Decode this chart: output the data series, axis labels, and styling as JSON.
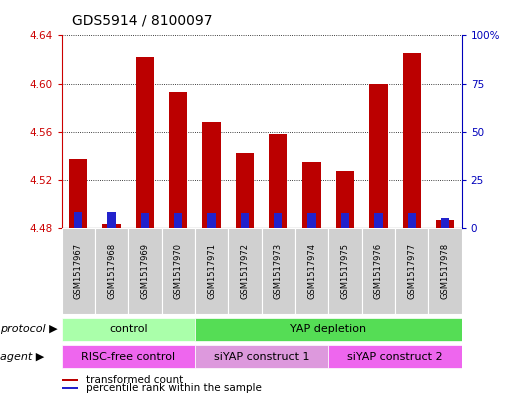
{
  "title": "GDS5914 / 8100097",
  "samples": [
    "GSM1517967",
    "GSM1517968",
    "GSM1517969",
    "GSM1517970",
    "GSM1517971",
    "GSM1517972",
    "GSM1517973",
    "GSM1517974",
    "GSM1517975",
    "GSM1517976",
    "GSM1517977",
    "GSM1517978"
  ],
  "red_values": [
    4.537,
    4.483,
    4.622,
    4.593,
    4.568,
    4.542,
    4.558,
    4.535,
    4.527,
    4.6,
    4.625,
    4.487
  ],
  "blue_values": [
    4.493,
    4.493,
    4.492,
    4.492,
    4.492,
    4.492,
    4.492,
    4.492,
    4.492,
    4.492,
    4.492,
    4.488
  ],
  "base_value": 4.48,
  "ylim": [
    4.48,
    4.64
  ],
  "yticks": [
    4.48,
    4.52,
    4.56,
    4.6,
    4.64
  ],
  "ytick_labels": [
    "4.48",
    "4.52",
    "4.56",
    "4.60",
    "4.64"
  ],
  "right_yticks": [
    0,
    25,
    50,
    75,
    100
  ],
  "right_ytick_labels": [
    "0",
    "25",
    "50",
    "75",
    "100%"
  ],
  "protocol_groups": [
    {
      "label": "control",
      "start": 0,
      "end": 4,
      "color": "#aaffaa"
    },
    {
      "label": "YAP depletion",
      "start": 4,
      "end": 12,
      "color": "#55dd55"
    }
  ],
  "agent_groups": [
    {
      "label": "RISC-free control",
      "start": 0,
      "end": 4,
      "color": "#ee66ee"
    },
    {
      "label": "siYAP construct 1",
      "start": 4,
      "end": 8,
      "color": "#dd99dd"
    },
    {
      "label": "siYAP construct 2",
      "start": 8,
      "end": 12,
      "color": "#ee66ee"
    }
  ],
  "bar_width": 0.55,
  "blue_bar_width": 0.25,
  "bar_color_red": "#bb0000",
  "bar_color_blue": "#2222cc",
  "grid_color": "#000000",
  "background_color": "#ffffff",
  "left_axis_color": "#cc0000",
  "right_axis_color": "#0000bb",
  "title_fontsize": 10,
  "tick_fontsize": 7.5,
  "sample_fontsize": 6,
  "annotation_fontsize": 8
}
